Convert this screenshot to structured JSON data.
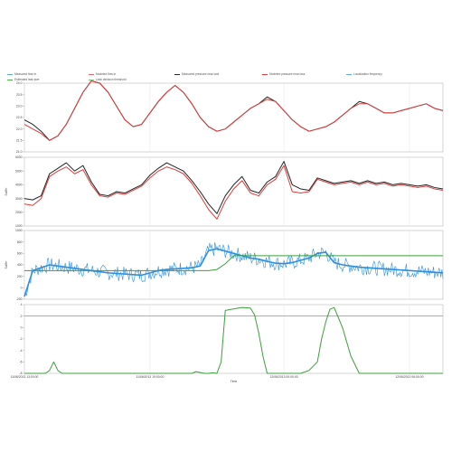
{
  "legend": {
    "items": [
      {
        "label": "Measured flow in",
        "color": "#5aa9c9"
      },
      {
        "label": "Modeled flow in",
        "color": "#e46a6a"
      },
      {
        "label": "Measured pressure near loss",
        "color": "#222222"
      },
      {
        "label": "Modeled pressure near loss",
        "color": "#e23a3a"
      },
      {
        "label": "Localization frequency",
        "color": "#5ab0e8"
      },
      {
        "label": "Estimated leak size",
        "color": "#4caf50"
      },
      {
        "label": "Leak decision threshold",
        "color": "#7bc47f"
      }
    ]
  },
  "chart_data": [
    {
      "type": "line",
      "panel": "top",
      "ylabel": "",
      "yticks": [
        "21.0",
        "21.5",
        "22.0",
        "22.5",
        "23.0",
        "23.5",
        "24.0"
      ],
      "ylim": [
        21.0,
        24.0
      ],
      "series": [
        {
          "color": "#222222",
          "x": [
            0,
            2,
            4,
            6,
            8,
            10,
            12,
            14,
            16,
            18,
            20,
            22,
            24,
            26,
            28,
            30,
            32,
            34,
            36,
            38,
            40,
            42,
            44,
            46,
            48,
            50,
            52,
            54,
            56,
            58,
            60,
            62,
            64,
            66,
            68,
            70,
            72,
            74,
            76,
            78,
            80,
            82,
            84,
            86,
            88,
            90,
            92,
            94,
            96,
            98,
            100
          ],
          "values": [
            22.4,
            22.2,
            21.9,
            21.5,
            21.7,
            22.2,
            22.9,
            23.6,
            24.1,
            24.0,
            23.6,
            23.0,
            22.4,
            22.1,
            22.2,
            22.7,
            23.2,
            23.6,
            23.9,
            23.6,
            23.1,
            22.5,
            22.1,
            21.9,
            22.0,
            22.3,
            22.6,
            22.9,
            23.1,
            23.4,
            23.2,
            22.8,
            22.4,
            22.1,
            21.9,
            22.0,
            22.1,
            22.3,
            22.6,
            22.9,
            23.2,
            23.1,
            22.9,
            22.7,
            22.7,
            22.8,
            22.9,
            23.0,
            23.1,
            22.9,
            22.8
          ]
        },
        {
          "color": "#e23a3a",
          "x": [
            0,
            2,
            4,
            6,
            8,
            10,
            12,
            14,
            16,
            18,
            20,
            22,
            24,
            26,
            28,
            30,
            32,
            34,
            36,
            38,
            40,
            42,
            44,
            46,
            48,
            50,
            52,
            54,
            56,
            58,
            60,
            62,
            64,
            66,
            68,
            70,
            72,
            74,
            76,
            78,
            80,
            82,
            84,
            86,
            88,
            90,
            92,
            94,
            96,
            98,
            100
          ],
          "values": [
            22.2,
            22.0,
            21.8,
            21.5,
            21.7,
            22.2,
            22.9,
            23.6,
            24.1,
            24.0,
            23.6,
            23.0,
            22.4,
            22.1,
            22.2,
            22.7,
            23.2,
            23.6,
            23.9,
            23.6,
            23.1,
            22.5,
            22.1,
            21.9,
            22.0,
            22.3,
            22.6,
            22.9,
            23.1,
            23.3,
            23.2,
            22.8,
            22.4,
            22.1,
            21.9,
            22.0,
            22.1,
            22.3,
            22.6,
            22.9,
            23.1,
            23.1,
            22.9,
            22.7,
            22.7,
            22.8,
            22.9,
            23.0,
            23.1,
            22.9,
            22.8
          ]
        }
      ]
    },
    {
      "type": "line",
      "panel": "second",
      "ylabel": "Scf/hr",
      "yticks": [
        "1000",
        "2000",
        "3000",
        "4000",
        "5000",
        "6000"
      ],
      "ylim": [
        1000,
        6000
      ],
      "series": [
        {
          "color": "#222222",
          "x": [
            0,
            2,
            4,
            6,
            8,
            10,
            12,
            14,
            16,
            18,
            20,
            22,
            24,
            26,
            28,
            30,
            32,
            34,
            36,
            38,
            40,
            42,
            44,
            46,
            48,
            50,
            52,
            54,
            56,
            58,
            60,
            62,
            64,
            66,
            68,
            70,
            72,
            74,
            76,
            78,
            80,
            82,
            84,
            86,
            88,
            90,
            92,
            94,
            96,
            98,
            100
          ],
          "values": [
            3000,
            2900,
            3200,
            4800,
            5200,
            5600,
            5000,
            5400,
            4200,
            3300,
            3200,
            3500,
            3400,
            3700,
            4000,
            4700,
            5200,
            5600,
            5300,
            5000,
            4300,
            3500,
            2600,
            1900,
            3200,
            4000,
            4600,
            3600,
            3400,
            4200,
            4600,
            5700,
            4000,
            3700,
            3600,
            4500,
            4300,
            4100,
            4200,
            4300,
            4100,
            4300,
            4100,
            4200,
            4000,
            4100,
            4000,
            3900,
            4000,
            3800,
            3700
          ]
        },
        {
          "color": "#e23a3a",
          "x": [
            0,
            2,
            4,
            6,
            8,
            10,
            12,
            14,
            16,
            18,
            20,
            22,
            24,
            26,
            28,
            30,
            32,
            34,
            36,
            38,
            40,
            42,
            44,
            46,
            48,
            50,
            52,
            54,
            56,
            58,
            60,
            62,
            64,
            66,
            68,
            70,
            72,
            74,
            76,
            78,
            80,
            82,
            84,
            86,
            88,
            90,
            92,
            94,
            96,
            98,
            100
          ],
          "values": [
            2600,
            2500,
            3000,
            4600,
            5000,
            5300,
            4800,
            5100,
            4000,
            3200,
            3100,
            3400,
            3300,
            3600,
            3900,
            4500,
            5000,
            5300,
            5100,
            4800,
            4100,
            3200,
            2200,
            1500,
            2800,
            3700,
            4300,
            3400,
            3200,
            4000,
            4400,
            5400,
            3500,
            3400,
            3500,
            4400,
            4200,
            4000,
            4100,
            4200,
            4000,
            4200,
            4000,
            4100,
            3900,
            4000,
            3900,
            3800,
            3900,
            3700,
            3600
          ]
        }
      ]
    },
    {
      "type": "line",
      "panel": "third",
      "ylabel": "Scf/hr",
      "yticks": [
        "-200",
        "0",
        "200",
        "400",
        "600",
        "800",
        "1000"
      ],
      "ylim": [
        -200,
        1000
      ],
      "series": [
        {
          "color": "#2d8fe0",
          "x": [
            0,
            2,
            4,
            6,
            8,
            10,
            12,
            14,
            16,
            18,
            20,
            22,
            24,
            26,
            28,
            30,
            32,
            34,
            36,
            38,
            40,
            42,
            44,
            46,
            48,
            50,
            52,
            54,
            56,
            58,
            60,
            62,
            64,
            66,
            68,
            70,
            72,
            74,
            76,
            78,
            80,
            82,
            84,
            86,
            88,
            90,
            92,
            94,
            96,
            98,
            100
          ],
          "values": [
            -150,
            300,
            350,
            400,
            380,
            360,
            340,
            320,
            300,
            280,
            260,
            250,
            240,
            230,
            220,
            260,
            300,
            320,
            330,
            340,
            350,
            380,
            650,
            680,
            640,
            600,
            560,
            520,
            500,
            460,
            430,
            420,
            440,
            480,
            520,
            600,
            620,
            440,
            400,
            380,
            360,
            350,
            340,
            330,
            320,
            310,
            300,
            290,
            280,
            270,
            260
          ]
        },
        {
          "color": "#3aa03a",
          "x": [
            0,
            44,
            46,
            48,
            50,
            100
          ],
          "values": [
            300,
            300,
            320,
            420,
            560,
            560
          ]
        }
      ]
    },
    {
      "type": "line",
      "panel": "bottom",
      "ylabel": "",
      "yticks": [
        "-8",
        "-6",
        "-4",
        "-2",
        "0",
        "2",
        "4"
      ],
      "xticks": [
        "11/06/2013 13:00:00",
        "11/06/2013 19:00:00",
        "12/06/2013 00:00:00",
        "12/06/2013 06:00:00"
      ],
      "xlabel": "Time",
      "ylim": [
        -8,
        4
      ],
      "threshold": 2,
      "series": [
        {
          "color": "#3aa03a",
          "x": [
            0,
            5,
            6,
            7,
            8,
            9,
            10,
            40,
            41,
            43,
            44,
            45,
            46,
            47,
            48,
            52,
            54,
            55,
            56,
            57,
            58,
            60,
            66,
            68,
            70,
            71,
            72,
            73,
            74,
            76,
            78,
            80,
            100
          ],
          "values": [
            -8,
            -8,
            -7.5,
            -6,
            -7.5,
            -8,
            -8,
            -8,
            -7.7,
            -8,
            -8,
            -7.9,
            -8,
            -6,
            3,
            3.5,
            3.4,
            2.2,
            -1,
            -5,
            -8,
            -8,
            -8,
            -7.5,
            -6,
            -2,
            1,
            3.2,
            3.5,
            0,
            -5,
            -8,
            -8
          ]
        }
      ]
    }
  ]
}
